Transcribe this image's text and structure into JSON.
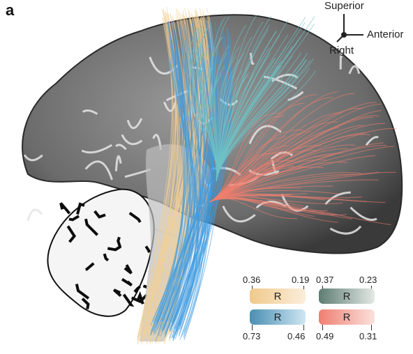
{
  "panel_label": "a",
  "orientation": {
    "superior": "Superior",
    "anterior": "Anterior",
    "right": "Right"
  },
  "colorbars": [
    {
      "label": "R",
      "left_value": "0.36",
      "right_value": "0.19",
      "color_strong": "#f0c98a",
      "color_light": "#fbeedd"
    },
    {
      "label": "R",
      "left_value": "0.37",
      "right_value": "0.23",
      "color_strong": "#5e7d72",
      "color_light": "#e4e9e6"
    },
    {
      "label": "R",
      "left_value": "0.73",
      "right_value": "0.46",
      "color_strong": "#4a8fb3",
      "color_light": "#cfe6f2"
    },
    {
      "label": "R",
      "left_value": "0.49",
      "right_value": "0.31",
      "color_strong": "#ef7f72",
      "color_light": "#fbe1dc"
    }
  ],
  "tract_colors": {
    "tan": "#f2cf95",
    "blue": "#3e9be0",
    "teal": "#6fc3c6",
    "salmon": "#f08070"
  }
}
